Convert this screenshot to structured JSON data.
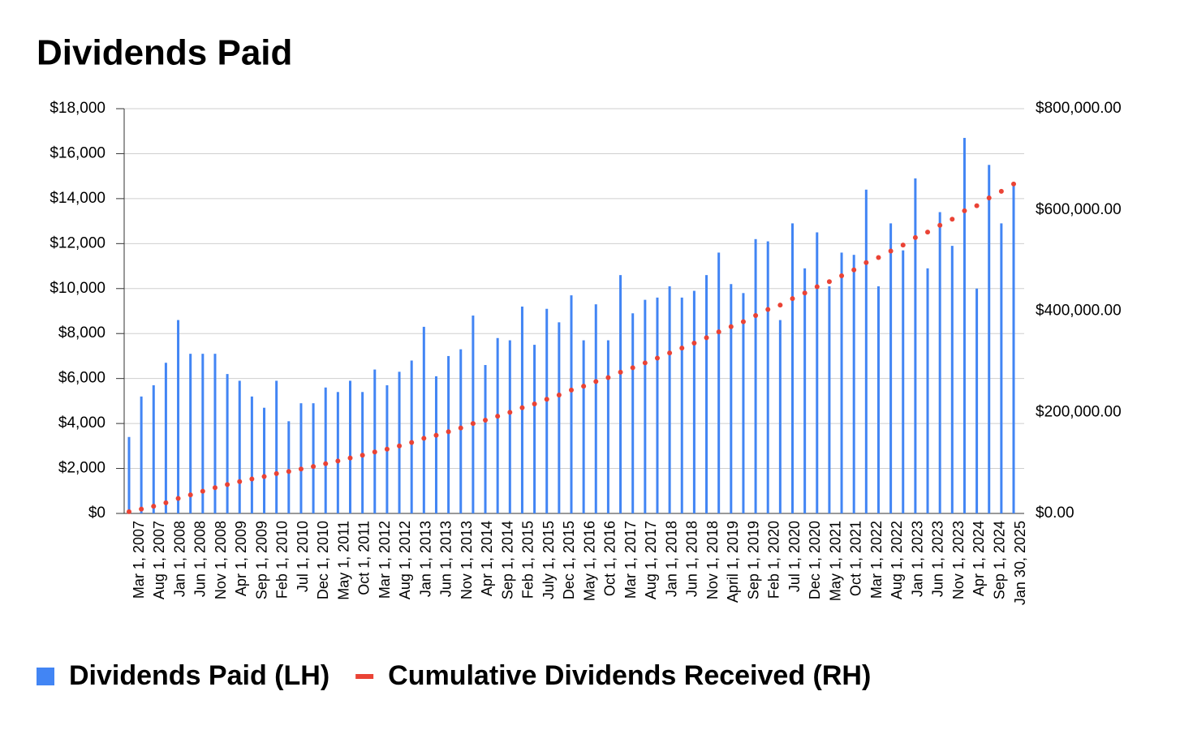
{
  "chart_data": {
    "type": "combo",
    "title": "Dividends Paid",
    "x_labels": [
      "Mar 1, 2007",
      "Aug 1, 2007",
      "Jan 1, 2008",
      "Jun 1, 2008",
      "Nov 1, 2008",
      "Apr 1, 2009",
      "Sep 1, 2009",
      "Feb 1, 2010",
      "Jul 1, 2010",
      "Dec 1, 2010",
      "May 1, 2011",
      "Oct 1, 2011",
      "Mar 1, 2012",
      "Aug 1, 2012",
      "Jan 1, 2013",
      "Jun 1, 2013",
      "Nov 1, 2013",
      "Apr 1, 2014",
      "Sep 1, 2014",
      "Feb 1, 2015",
      "July 1, 2015",
      "Dec 1, 2015",
      "May 1, 2016",
      "Oct 1, 2016",
      "Mar 1, 2017",
      "Aug 1, 2017",
      "Jan 1, 2018",
      "Jun 1, 2018",
      "Nov 1, 2018",
      "April 1, 2019",
      "Sep 1, 2019",
      "Feb 1, 2020",
      "Jul 1, 2020",
      "Dec 1, 2020",
      "May 1, 2021",
      "Oct 1, 2021",
      "Mar 1, 2022",
      "Aug 1, 2022",
      "Jan 1, 2023",
      "Jun 1, 2023",
      "Nov 1, 2023",
      "Apr 1, 2024",
      "Sep 1, 2024",
      "Jan 30, 2025"
    ],
    "series": [
      {
        "name": "Dividends Paid (LH)",
        "type": "bar",
        "color": "#4285f4",
        "values": [
          3400,
          5200,
          5700,
          6700,
          8600,
          7100,
          7100,
          7100,
          6200,
          5900,
          5200,
          4700,
          5900,
          4100,
          4900,
          4900,
          5600,
          5400,
          5900,
          5400,
          6400,
          5700,
          6300,
          6800,
          8300,
          6100,
          7000,
          7300,
          8800,
          6600,
          7800,
          7700,
          9200,
          7500,
          9100,
          8500,
          9700,
          7700,
          9300,
          7700,
          10600,
          8900,
          9500,
          9600,
          10100,
          9600,
          9900,
          10600,
          11600,
          10200,
          9800,
          12200,
          12100,
          8600,
          12900,
          10900,
          12500,
          10100,
          11600,
          11500,
          14400,
          10100,
          12900,
          11700,
          14900,
          10900,
          13400,
          11900,
          16700,
          10000,
          15500,
          12900,
          14600
        ]
      },
      {
        "name": "Cumulative Dividends Received (RH)",
        "type": "scatter",
        "axis": "y2",
        "color": "#ea4335",
        "values": [
          3400,
          8600,
          14300,
          21000,
          29600,
          36700,
          43800,
          50900,
          57100,
          63000,
          68200,
          72900,
          78800,
          82900,
          87800,
          92700,
          98300,
          103700,
          109600,
          115000,
          121400,
          127100,
          133400,
          140200,
          148500,
          154600,
          161600,
          168900,
          177700,
          184300,
          192100,
          199800,
          209000,
          216500,
          225600,
          234100,
          243800,
          251500,
          260800,
          268500,
          279100,
          288000,
          297500,
          307100,
          317200,
          326800,
          336700,
          347300,
          358900,
          369100,
          378900,
          391100,
          403200,
          411800,
          424700,
          435600,
          448100,
          458200,
          469800,
          481300,
          495700,
          505800,
          518700,
          530400,
          545300,
          556200,
          569600,
          581500,
          598200,
          608200,
          623700,
          636600,
          651200
        ]
      }
    ],
    "ylim": [
      0,
      18000
    ],
    "yticks": [
      {
        "value": 0,
        "label": "$0"
      },
      {
        "value": 2000,
        "label": "$2,000"
      },
      {
        "value": 4000,
        "label": "$4,000"
      },
      {
        "value": 6000,
        "label": "$6,000"
      },
      {
        "value": 8000,
        "label": "$8,000"
      },
      {
        "value": 10000,
        "label": "$10,000"
      },
      {
        "value": 12000,
        "label": "$12,000"
      },
      {
        "value": 14000,
        "label": "$14,000"
      },
      {
        "value": 16000,
        "label": "$16,000"
      },
      {
        "value": 18000,
        "label": "$18,000"
      }
    ],
    "y2lim": [
      0,
      800000
    ],
    "y2ticks": [
      {
        "value": 0,
        "label": "$0.00"
      },
      {
        "value": 200000,
        "label": "$200,000.00"
      },
      {
        "value": 400000,
        "label": "$400,000.00"
      },
      {
        "value": 600000,
        "label": "$600,000.00"
      },
      {
        "value": 800000,
        "label": "$800,000.00"
      }
    ],
    "grid": true,
    "legend": "bottom"
  }
}
